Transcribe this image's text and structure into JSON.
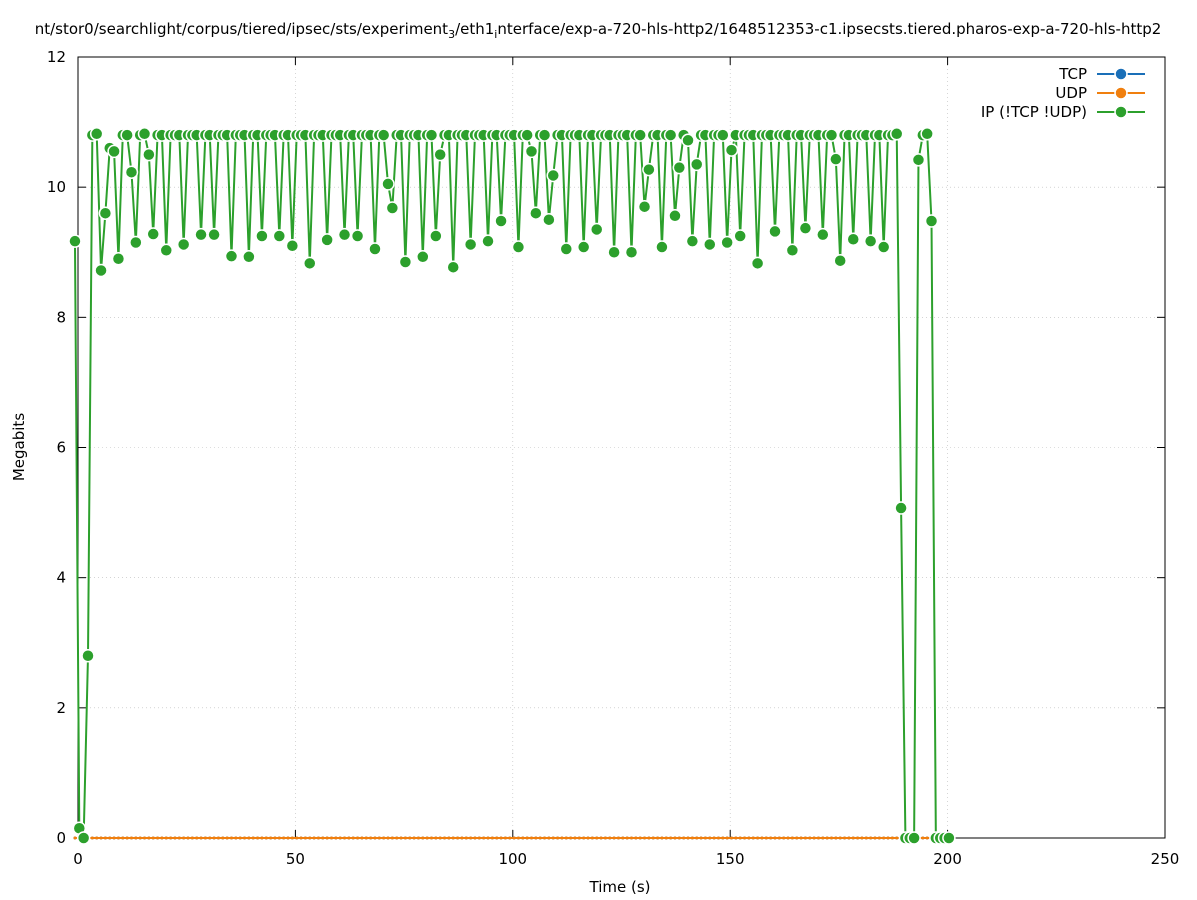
{
  "chart_data": {
    "type": "line",
    "title_parts": [
      "nt/stor0/searchlight/corpus/tiered/ipsec/sts/experiment",
      "3",
      "/eth1",
      "i",
      "nterface/exp-a-720-hls-http2/1648512353-c1.ipsecsts.tiered.pharos-exp-a-720-hls-http2"
    ],
    "x_label": "Time (s)",
    "y_label": "Megabits",
    "xlim": [
      0,
      250
    ],
    "ylim": [
      0,
      12
    ],
    "xticks": [
      0,
      50,
      100,
      150,
      200,
      250
    ],
    "yticks": [
      0,
      2,
      4,
      6,
      8,
      10,
      12
    ],
    "grid": true,
    "legend": "top-right",
    "x": [
      -0.7,
      0.3,
      1.3,
      2.3,
      3.3,
      4.3,
      5.3,
      6.3,
      7.3,
      8.3,
      9.3,
      10.3,
      11.3,
      12.3,
      13.3,
      14.3,
      15.3,
      16.3,
      17.3,
      18.3,
      19.3,
      20.3,
      21.3,
      22.3,
      23.3,
      24.3,
      25.3,
      26.3,
      27.3,
      28.3,
      29.3,
      30.3,
      31.3,
      32.3,
      33.3,
      34.3,
      35.3,
      36.3,
      37.3,
      38.3,
      39.3,
      40.3,
      41.3,
      42.3,
      43.3,
      44.3,
      45.3,
      46.3,
      47.3,
      48.3,
      49.3,
      50.3,
      51.3,
      52.3,
      53.3,
      54.3,
      55.3,
      56.3,
      57.3,
      58.3,
      59.3,
      60.3,
      61.3,
      62.3,
      63.3,
      64.3,
      65.3,
      66.3,
      67.3,
      68.3,
      69.3,
      70.3,
      71.3,
      72.3,
      73.3,
      74.3,
      75.3,
      76.3,
      77.3,
      78.3,
      79.3,
      80.3,
      81.3,
      82.3,
      83.3,
      84.3,
      85.3,
      86.3,
      87.3,
      88.3,
      89.3,
      90.3,
      91.3,
      92.3,
      93.3,
      94.3,
      95.3,
      96.3,
      97.3,
      98.3,
      99.3,
      100.3,
      101.3,
      102.3,
      103.3,
      104.3,
      105.3,
      106.3,
      107.3,
      108.3,
      109.3,
      110.3,
      111.3,
      112.3,
      113.3,
      114.3,
      115.3,
      116.3,
      117.3,
      118.3,
      119.3,
      120.3,
      121.3,
      122.3,
      123.3,
      124.3,
      125.3,
      126.3,
      127.3,
      128.3,
      129.3,
      130.3,
      131.3,
      132.3,
      133.3,
      134.3,
      135.3,
      136.3,
      137.3,
      138.3,
      139.3,
      140.3,
      141.3,
      142.3,
      143.3,
      144.3,
      145.3,
      146.3,
      147.3,
      148.3,
      149.3,
      150.3,
      151.3,
      152.3,
      153.3,
      154.3,
      155.3,
      156.3,
      157.3,
      158.3,
      159.3,
      160.3,
      161.3,
      162.3,
      163.3,
      164.3,
      165.3,
      166.3,
      167.3,
      168.3,
      169.3,
      170.3,
      171.3,
      172.3,
      173.3,
      174.3,
      175.3,
      176.3,
      177.3,
      178.3,
      179.3,
      180.3,
      181.3,
      182.3,
      183.3,
      184.3,
      185.3,
      186.3,
      187.3,
      188.3,
      189.3,
      190.3,
      191.3,
      192.3,
      193.3,
      194.3,
      195.3,
      196.3,
      197.3,
      198.3,
      199.3,
      200.3
    ],
    "series": [
      {
        "name": "TCP",
        "color": "#1a6fb8",
        "values": [
          0,
          0,
          0,
          0,
          0,
          0,
          0,
          0,
          0,
          0,
          0,
          0,
          0,
          0,
          0,
          0,
          0,
          0,
          0,
          0,
          0,
          0,
          0,
          0,
          0,
          0,
          0,
          0,
          0,
          0,
          0,
          0,
          0,
          0,
          0,
          0,
          0,
          0,
          0,
          0,
          0,
          0,
          0,
          0,
          0,
          0,
          0,
          0,
          0,
          0,
          0,
          0,
          0,
          0,
          0,
          0,
          0,
          0,
          0,
          0,
          0,
          0,
          0,
          0,
          0,
          0,
          0,
          0,
          0,
          0,
          0,
          0,
          0,
          0,
          0,
          0,
          0,
          0,
          0,
          0,
          0,
          0,
          0,
          0,
          0,
          0,
          0,
          0,
          0,
          0,
          0,
          0,
          0,
          0,
          0,
          0,
          0,
          0,
          0,
          0,
          0,
          0,
          0,
          0,
          0,
          0,
          0,
          0,
          0,
          0,
          0,
          0,
          0,
          0,
          0,
          0,
          0,
          0,
          0,
          0,
          0,
          0,
          0,
          0,
          0,
          0,
          0,
          0,
          0,
          0,
          0,
          0,
          0,
          0,
          0,
          0,
          0,
          0,
          0,
          0,
          0,
          0,
          0,
          0,
          0,
          0,
          0,
          0,
          0,
          0,
          0,
          0,
          0,
          0,
          0,
          0,
          0,
          0,
          0,
          0,
          0,
          0,
          0,
          0,
          0,
          0,
          0,
          0,
          0,
          0,
          0,
          0,
          0,
          0,
          0,
          0,
          0,
          0,
          0,
          0,
          0,
          0,
          0,
          0,
          0,
          0,
          0,
          0,
          0,
          0,
          0,
          0,
          0,
          0,
          0,
          0,
          0,
          0,
          0,
          0,
          0,
          0
        ]
      },
      {
        "name": "UDP",
        "color": "#f07f0e",
        "values": [
          0,
          0,
          0,
          0,
          0,
          0,
          0,
          0,
          0,
          0,
          0,
          0,
          0,
          0,
          0,
          0,
          0,
          0,
          0,
          0,
          0,
          0,
          0,
          0,
          0,
          0,
          0,
          0,
          0,
          0,
          0,
          0,
          0,
          0,
          0,
          0,
          0,
          0,
          0,
          0,
          0,
          0,
          0,
          0,
          0,
          0,
          0,
          0,
          0,
          0,
          0,
          0,
          0,
          0,
          0,
          0,
          0,
          0,
          0,
          0,
          0,
          0,
          0,
          0,
          0,
          0,
          0,
          0,
          0,
          0,
          0,
          0,
          0,
          0,
          0,
          0,
          0,
          0,
          0,
          0,
          0,
          0,
          0,
          0,
          0,
          0,
          0,
          0,
          0,
          0,
          0,
          0,
          0,
          0,
          0,
          0,
          0,
          0,
          0,
          0,
          0,
          0,
          0,
          0,
          0,
          0,
          0,
          0,
          0,
          0,
          0,
          0,
          0,
          0,
          0,
          0,
          0,
          0,
          0,
          0,
          0,
          0,
          0,
          0,
          0,
          0,
          0,
          0,
          0,
          0,
          0,
          0,
          0,
          0,
          0,
          0,
          0,
          0,
          0,
          0,
          0,
          0,
          0,
          0,
          0,
          0,
          0,
          0,
          0,
          0,
          0,
          0,
          0,
          0,
          0,
          0,
          0,
          0,
          0,
          0,
          0,
          0,
          0,
          0,
          0,
          0,
          0,
          0,
          0,
          0,
          0,
          0,
          0,
          0,
          0,
          0,
          0,
          0,
          0,
          0,
          0,
          0,
          0,
          0,
          0,
          0,
          0,
          0,
          0,
          0,
          0,
          0,
          0,
          0,
          0,
          0,
          0,
          0,
          0,
          0,
          0,
          0
        ]
      },
      {
        "name": "IP (!TCP  !UDP)",
        "color": "#2ca02c",
        "values": [
          9.17,
          0.15,
          0,
          2.8,
          10.8,
          10.82,
          8.72,
          9.6,
          10.6,
          10.55,
          8.9,
          10.8,
          10.8,
          10.23,
          9.15,
          10.8,
          10.82,
          10.5,
          9.28,
          10.8,
          10.8,
          9.03,
          10.8,
          10.8,
          10.8,
          9.12,
          10.8,
          10.8,
          10.8,
          9.27,
          10.8,
          10.8,
          9.27,
          10.8,
          10.8,
          10.8,
          8.94,
          10.8,
          10.8,
          10.8,
          8.93,
          10.8,
          10.8,
          9.25,
          10.8,
          10.8,
          10.8,
          9.25,
          10.8,
          10.8,
          9.1,
          10.8,
          10.8,
          10.8,
          8.83,
          10.8,
          10.8,
          10.8,
          9.19,
          10.8,
          10.8,
          10.8,
          9.27,
          10.8,
          10.8,
          9.25,
          10.8,
          10.8,
          10.8,
          9.05,
          10.8,
          10.8,
          10.05,
          9.68,
          10.8,
          10.8,
          8.85,
          10.8,
          10.8,
          10.8,
          8.93,
          10.8,
          10.8,
          9.25,
          10.5,
          10.8,
          10.8,
          8.77,
          10.8,
          10.8,
          10.8,
          9.12,
          10.8,
          10.8,
          10.8,
          9.17,
          10.8,
          10.8,
          9.48,
          10.8,
          10.8,
          10.8,
          9.08,
          10.8,
          10.8,
          10.55,
          9.6,
          10.8,
          10.8,
          9.5,
          10.18,
          10.8,
          10.8,
          9.05,
          10.8,
          10.8,
          10.8,
          9.08,
          10.8,
          10.8,
          9.35,
          10.8,
          10.8,
          10.8,
          9.0,
          10.8,
          10.8,
          10.8,
          9.0,
          10.8,
          10.8,
          9.7,
          10.27,
          10.8,
          10.8,
          9.08,
          10.8,
          10.8,
          9.56,
          10.3,
          10.8,
          10.72,
          9.17,
          10.35,
          10.8,
          10.8,
          9.12,
          10.8,
          10.8,
          10.8,
          9.15,
          10.57,
          10.8,
          9.25,
          10.8,
          10.8,
          10.8,
          8.83,
          10.8,
          10.8,
          10.8,
          9.32,
          10.8,
          10.8,
          10.8,
          9.03,
          10.8,
          10.8,
          9.37,
          10.8,
          10.8,
          10.8,
          9.27,
          10.8,
          10.8,
          10.43,
          8.87,
          10.8,
          10.8,
          9.2,
          10.8,
          10.8,
          10.8,
          9.17,
          10.8,
          10.8,
          9.08,
          10.8,
          10.8,
          10.82,
          5.07,
          0,
          0,
          0,
          10.42,
          10.8,
          10.82,
          9.48,
          0,
          0,
          0,
          0
        ]
      }
    ]
  }
}
